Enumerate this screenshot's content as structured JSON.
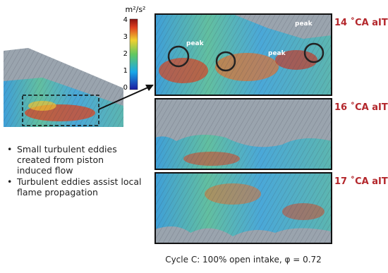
{
  "colorbar": {
    "unit": "m²/s²",
    "ticks": [
      "4",
      "3",
      "2",
      "1",
      "0"
    ]
  },
  "panels": [
    {
      "label": "14 ˚CA aIT",
      "annotations": [
        "peak",
        "peak",
        "peak"
      ]
    },
    {
      "label": "16 ˚CA aIT"
    },
    {
      "label": "17 ˚CA aIT"
    }
  ],
  "bullets": [
    "Small turbulent eddies created from piston induced flow",
    "Turbulent eddies assist local flame propagation"
  ],
  "caption": "Cycle C: 100% open intake, φ = 0.72"
}
